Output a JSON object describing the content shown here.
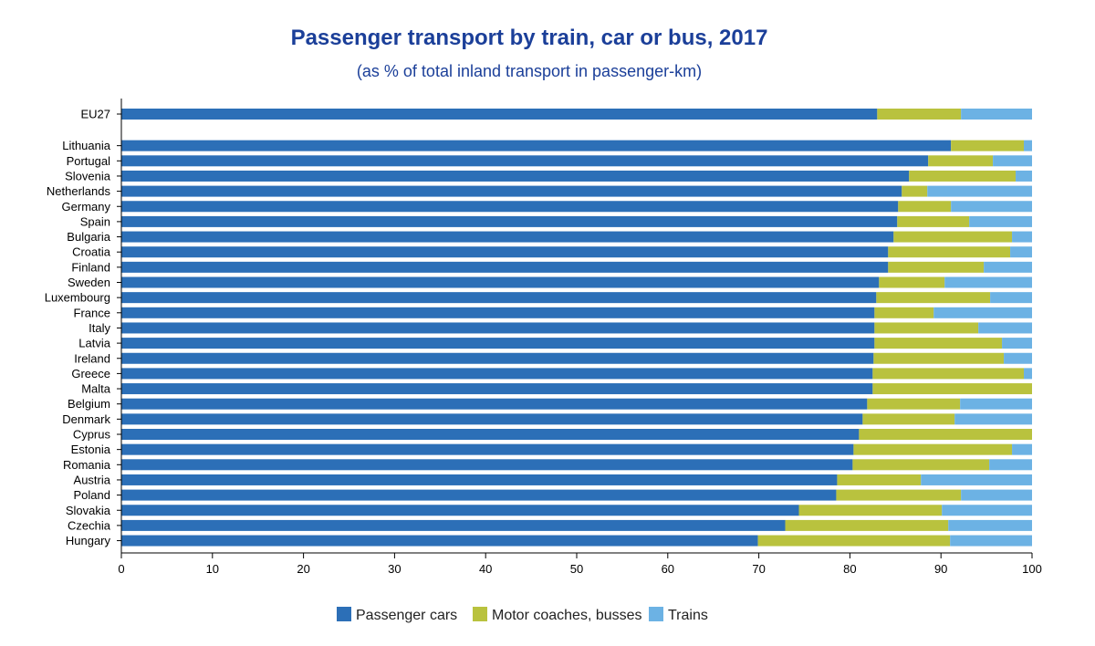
{
  "chart_data": {
    "type": "bar",
    "orientation": "horizontal",
    "stacked": true,
    "title": "Passenger transport by train, car or bus, 2017",
    "subtitle": "(as % of total inland transport in passenger-km)",
    "xlabel": "",
    "ylabel": "",
    "xlim": [
      0,
      100
    ],
    "xticks": [
      0,
      10,
      20,
      30,
      40,
      50,
      60,
      70,
      80,
      90,
      100
    ],
    "grid": false,
    "legend_position": "bottom",
    "categories": [
      "EU27",
      "Lithuania",
      "Portugal",
      "Slovenia",
      "Netherlands",
      "Germany",
      "Spain",
      "Bulgaria",
      "Croatia",
      "Finland",
      "Sweden",
      "Luxembourg",
      "France",
      "Italy",
      "Latvia",
      "Ireland",
      "Greece",
      "Malta",
      "Belgium",
      "Denmark",
      "Cyprus",
      "Estonia",
      "Romania",
      "Austria",
      "Poland",
      "Slovakia",
      "Czechia",
      "Hungary"
    ],
    "series": [
      {
        "name": "Passenger cars",
        "color": "#2c6fb7",
        "values": [
          83.0,
          91.1,
          88.6,
          86.5,
          85.7,
          85.3,
          85.2,
          84.8,
          84.2,
          84.2,
          83.2,
          82.9,
          82.7,
          82.7,
          82.7,
          82.6,
          82.5,
          82.5,
          81.9,
          81.4,
          81.0,
          80.4,
          80.3,
          78.6,
          78.5,
          74.4,
          72.9,
          69.9
        ]
      },
      {
        "name": "Motor coaches, busses",
        "color": "#b9c23e",
        "values": [
          9.2,
          8.0,
          7.1,
          11.7,
          2.8,
          5.8,
          7.9,
          13.0,
          13.4,
          10.5,
          7.2,
          12.5,
          6.5,
          11.4,
          14.0,
          14.3,
          16.6,
          17.5,
          10.2,
          10.1,
          19.0,
          17.4,
          15.0,
          9.2,
          13.7,
          15.7,
          17.9,
          21.1
        ]
      },
      {
        "name": "Trains",
        "color": "#6cb2e4",
        "values": [
          7.8,
          0.9,
          4.3,
          1.8,
          11.5,
          8.9,
          6.9,
          2.2,
          2.4,
          5.3,
          9.6,
          4.6,
          10.8,
          5.9,
          3.3,
          3.1,
          0.9,
          0.0,
          7.9,
          8.5,
          0.0,
          2.2,
          4.7,
          12.2,
          7.8,
          9.9,
          9.2,
          9.0
        ]
      }
    ]
  }
}
